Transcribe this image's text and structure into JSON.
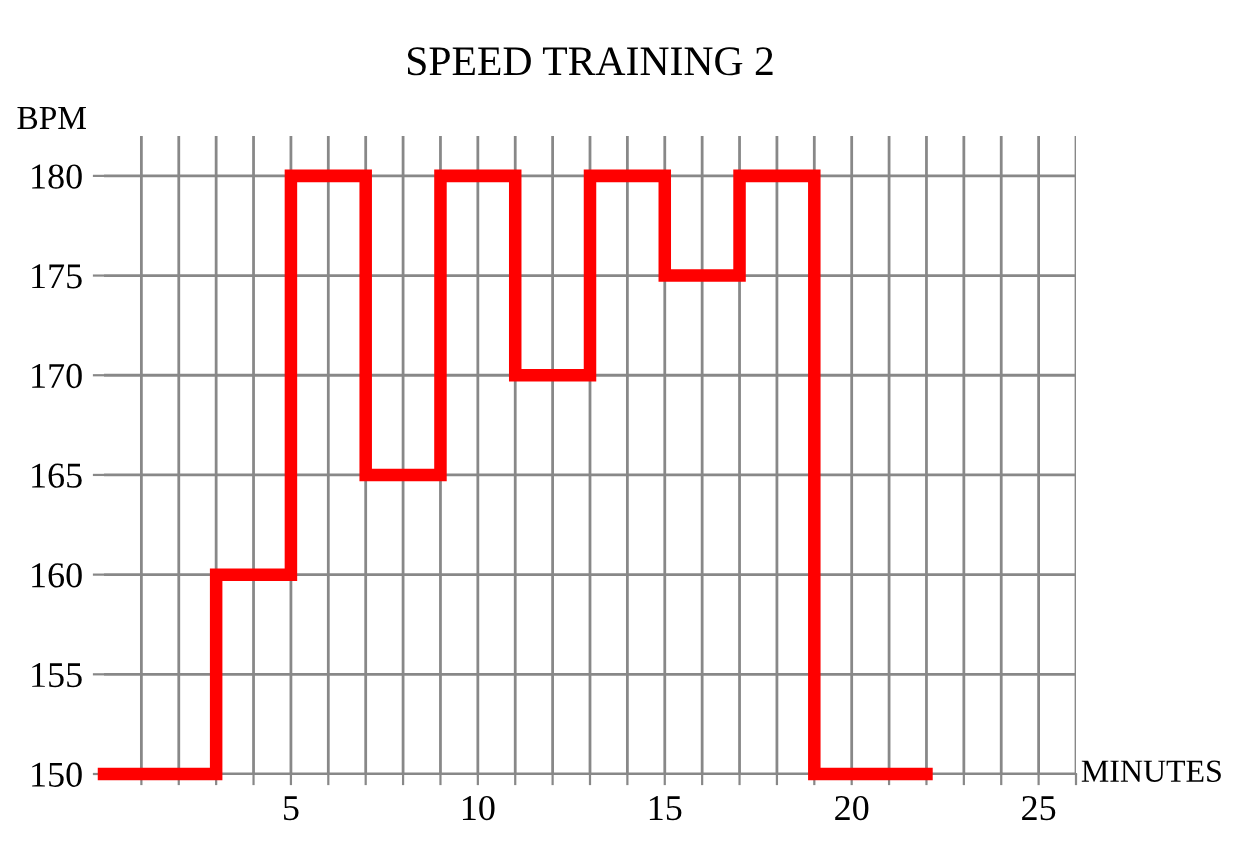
{
  "chart_data": {
    "type": "step",
    "title": "SPEED TRAINING 2",
    "xlabel": "MINUTES",
    "ylabel": "BPM",
    "x": [
      0,
      3,
      5,
      7,
      9,
      11,
      13,
      15,
      17,
      19,
      22
    ],
    "series": [
      {
        "color": "#ff0000",
        "values": [
          150,
          160,
          180,
          165,
          180,
          170,
          180,
          175,
          180,
          150,
          150
        ]
      }
    ],
    "xlim": [
      0,
      26
    ],
    "ylim": [
      150,
      182
    ],
    "xticks": [
      {
        "value": 1,
        "label": null
      },
      {
        "value": 2,
        "label": null
      },
      {
        "value": 3,
        "label": null
      },
      {
        "value": 4,
        "label": null
      },
      5,
      {
        "value": 6,
        "label": null
      },
      {
        "value": 7,
        "label": null
      },
      {
        "value": 8,
        "label": null
      },
      {
        "value": 9,
        "label": null
      },
      10,
      {
        "value": 11,
        "label": null
      },
      {
        "value": 12,
        "label": null
      },
      {
        "value": 13,
        "label": null
      },
      {
        "value": 14,
        "label": null
      },
      15,
      {
        "value": 16,
        "label": null
      },
      {
        "value": 17,
        "label": null
      },
      {
        "value": 18,
        "label": null
      },
      {
        "value": 19,
        "label": null
      },
      20,
      {
        "value": 21,
        "label": null
      },
      {
        "value": 22,
        "label": null
      },
      {
        "value": 23,
        "label": null
      },
      {
        "value": 24,
        "label": null
      },
      25,
      {
        "value": 26,
        "label": null
      }
    ],
    "yticks": [
      150,
      155,
      160,
      165,
      170,
      175,
      180
    ],
    "grid": true,
    "line_style": "solid",
    "marker": "none"
  }
}
